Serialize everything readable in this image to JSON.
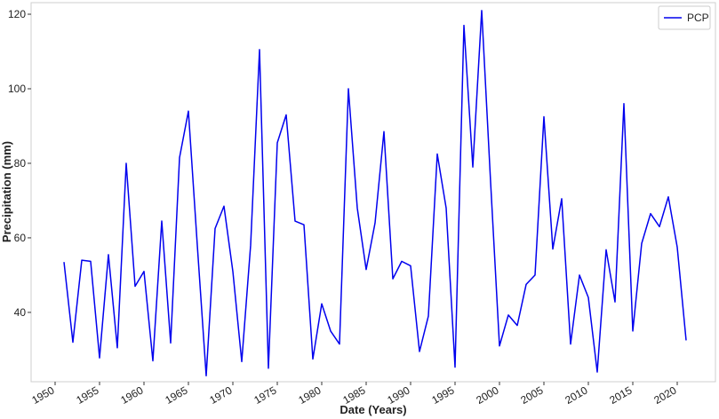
{
  "chart_data": {
    "type": "line",
    "xlabel": "Date (Years)",
    "ylabel": "Precipitation (mm)",
    "x": [
      1951,
      1952,
      1953,
      1954,
      1955,
      1956,
      1957,
      1958,
      1959,
      1960,
      1961,
      1962,
      1963,
      1964,
      1965,
      1966,
      1967,
      1968,
      1969,
      1970,
      1971,
      1972,
      1973,
      1974,
      1975,
      1976,
      1977,
      1978,
      1979,
      1980,
      1981,
      1982,
      1983,
      1984,
      1985,
      1986,
      1987,
      1988,
      1989,
      1990,
      1991,
      1992,
      1993,
      1994,
      1995,
      1996,
      1997,
      1998,
      1999,
      2000,
      2001,
      2002,
      2003,
      2004,
      2005,
      2006,
      2007,
      2008,
      2009,
      2010,
      2011,
      2012,
      2013,
      2014,
      2015,
      2016,
      2017,
      2018,
      2019,
      2020,
      2021
    ],
    "series": [
      {
        "name": "PCP",
        "color": "#0000ee",
        "values": [
          53.5,
          32,
          54,
          53.7,
          27.8,
          55.5,
          30.5,
          80,
          47,
          51,
          27,
          64.5,
          31.8,
          81.5,
          94,
          58,
          23,
          62.5,
          68.5,
          51,
          26.8,
          58,
          110.5,
          25,
          85.5,
          93,
          64.5,
          63.5,
          27.5,
          42.3,
          35,
          31.5,
          100,
          68,
          51.5,
          64,
          88.5,
          49,
          53.7,
          52.5,
          29.5,
          39,
          82.5,
          68,
          25.3,
          117,
          79,
          121,
          75,
          31,
          39.3,
          36.5,
          47.5,
          50,
          92.5,
          57,
          70.5,
          31.5,
          50,
          44,
          24,
          56.8,
          42.8,
          96,
          35,
          58.5,
          66.5,
          63,
          71,
          57.5,
          32.5
        ]
      }
    ],
    "xlim": [
      1947.3,
      2024.3
    ],
    "ylim": [
      21.4,
      123.1
    ],
    "xticks": [
      1950,
      1955,
      1960,
      1965,
      1970,
      1975,
      1980,
      1985,
      1990,
      1995,
      2000,
      2005,
      2010,
      2015,
      2020
    ],
    "yticks": [
      40,
      60,
      80,
      100,
      120
    ],
    "legend": "upper right",
    "grid": false
  }
}
